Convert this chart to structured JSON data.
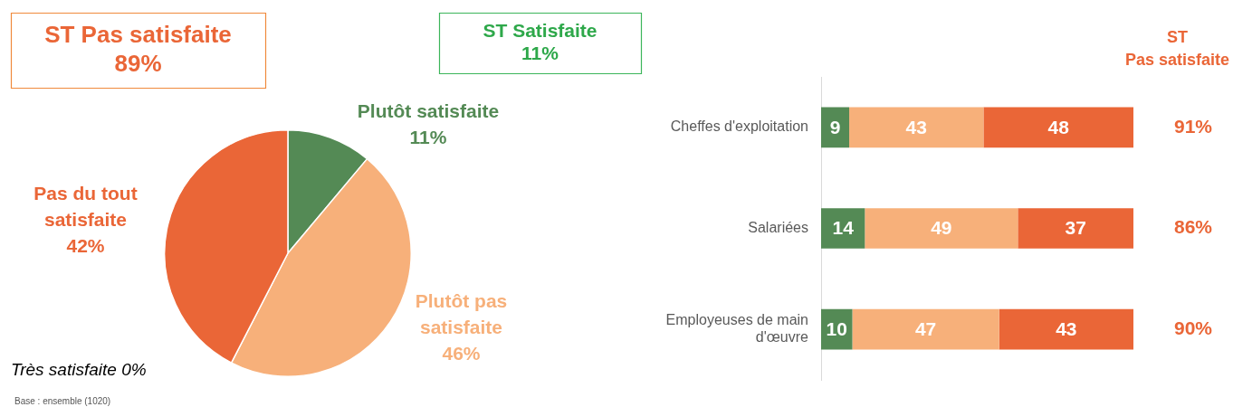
{
  "chart_data": [
    {
      "type": "pie",
      "categories": [
        "Très satisfaite",
        "Plutôt satisfaite",
        "Plutôt pas satisfaite",
        "Pas du tout satisfaite"
      ],
      "values": [
        0,
        11,
        46,
        42
      ],
      "colors": [
        "#2f5e31",
        "#548a55",
        "#f7b07a",
        "#ea6637"
      ],
      "value_labels": [
        "0%",
        "11%",
        "46%",
        "42%"
      ],
      "annotations": [
        "ST Pas satisfaite\n89%",
        "ST Satisfaite\n11%",
        "Base : ensemble (1020)"
      ]
    },
    {
      "type": "bar",
      "orientation": "horizontal",
      "stacked": true,
      "categories": [
        "Cheffes d'exploitation",
        "Salariées",
        "Employeuses de main d'œuvre"
      ],
      "series": [
        {
          "color": "#548a55",
          "values": [
            9,
            14,
            10
          ]
        },
        {
          "color": "#f7b07a",
          "values": [
            43,
            49,
            47
          ]
        },
        {
          "color": "#ea6637",
          "values": [
            48,
            37,
            43
          ]
        }
      ],
      "xlim": [
        0,
        100
      ],
      "tick_labels": "y",
      "data_labels": true,
      "annotations": [
        "ST\nPas satisfaite",
        "91%",
        "86%",
        "90%"
      ]
    }
  ]
}
